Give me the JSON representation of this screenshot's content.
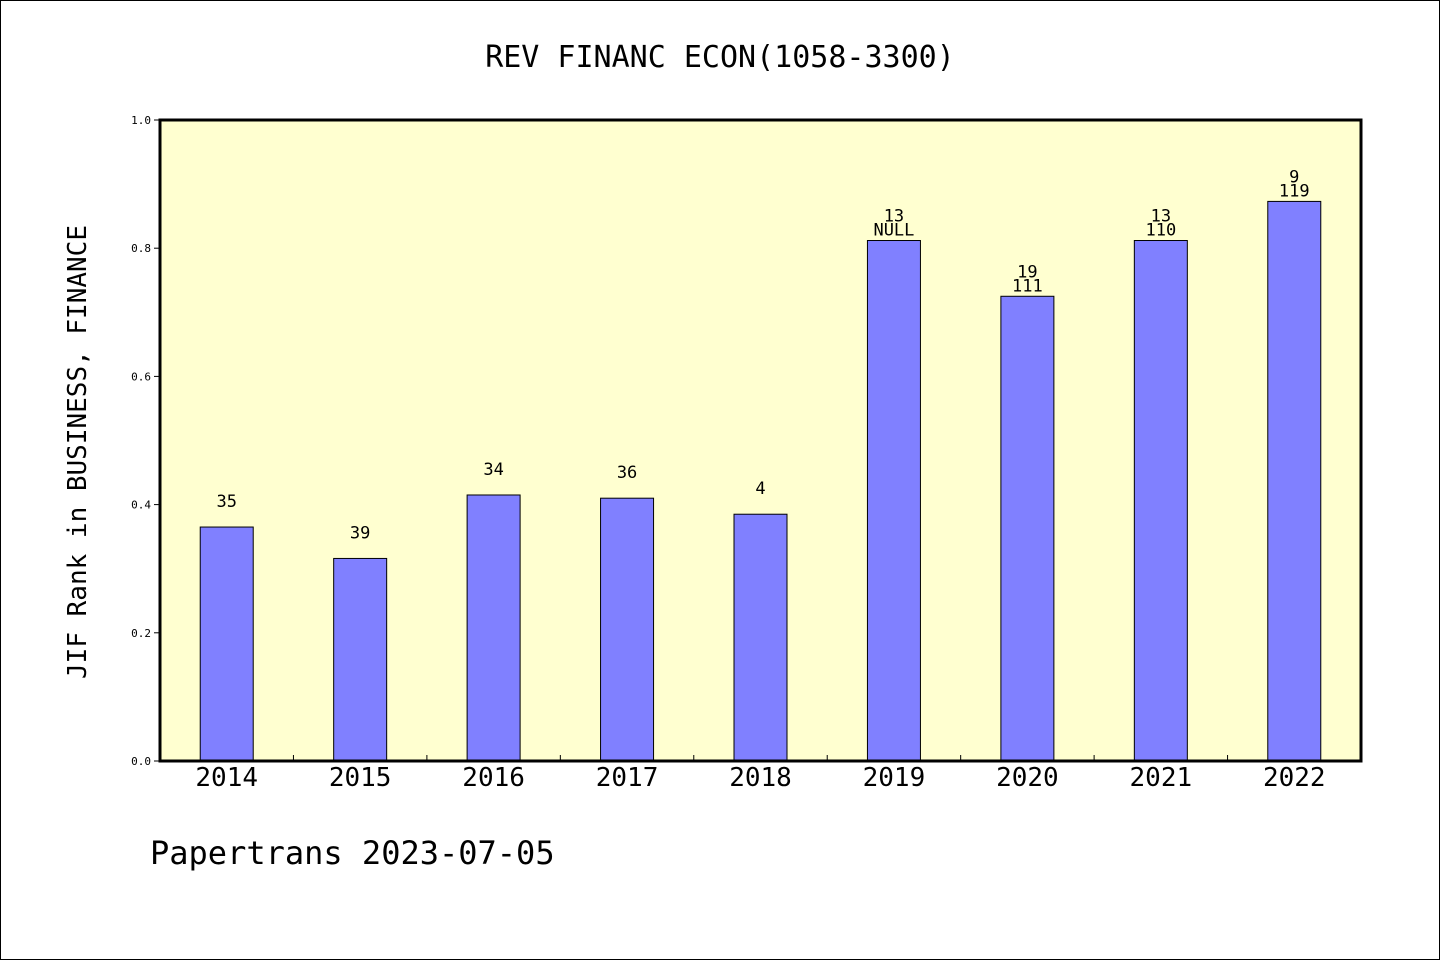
{
  "chart_data": {
    "type": "bar",
    "title": "REV FINANC ECON(1058-3300)",
    "ylabel": "JIF Rank in BUSINESS, FINANCE",
    "xlabel": "",
    "categories": [
      "2014",
      "2015",
      "2016",
      "2017",
      "2018",
      "2019",
      "2020",
      "2021",
      "2022"
    ],
    "values": [
      0.365,
      0.316,
      0.415,
      0.41,
      0.385,
      0.812,
      0.725,
      0.812,
      0.873
    ],
    "bar_labels_top": [
      "",
      "",
      "",
      "",
      "",
      "13",
      "19",
      "13",
      "9"
    ],
    "bar_labels": [
      "35",
      "39",
      "34",
      "36",
      "4",
      "NULL",
      "111",
      "110",
      "119"
    ],
    "ylim": [
      0,
      1.0
    ],
    "yticks": [
      "0.0",
      "0.2",
      "0.4",
      "0.6",
      "0.8",
      "1.0"
    ],
    "grid": false,
    "colors": {
      "bar": "#8080ff",
      "plot_bg": "#ffffd0"
    }
  },
  "footer": "Papertrans 2023-07-05"
}
